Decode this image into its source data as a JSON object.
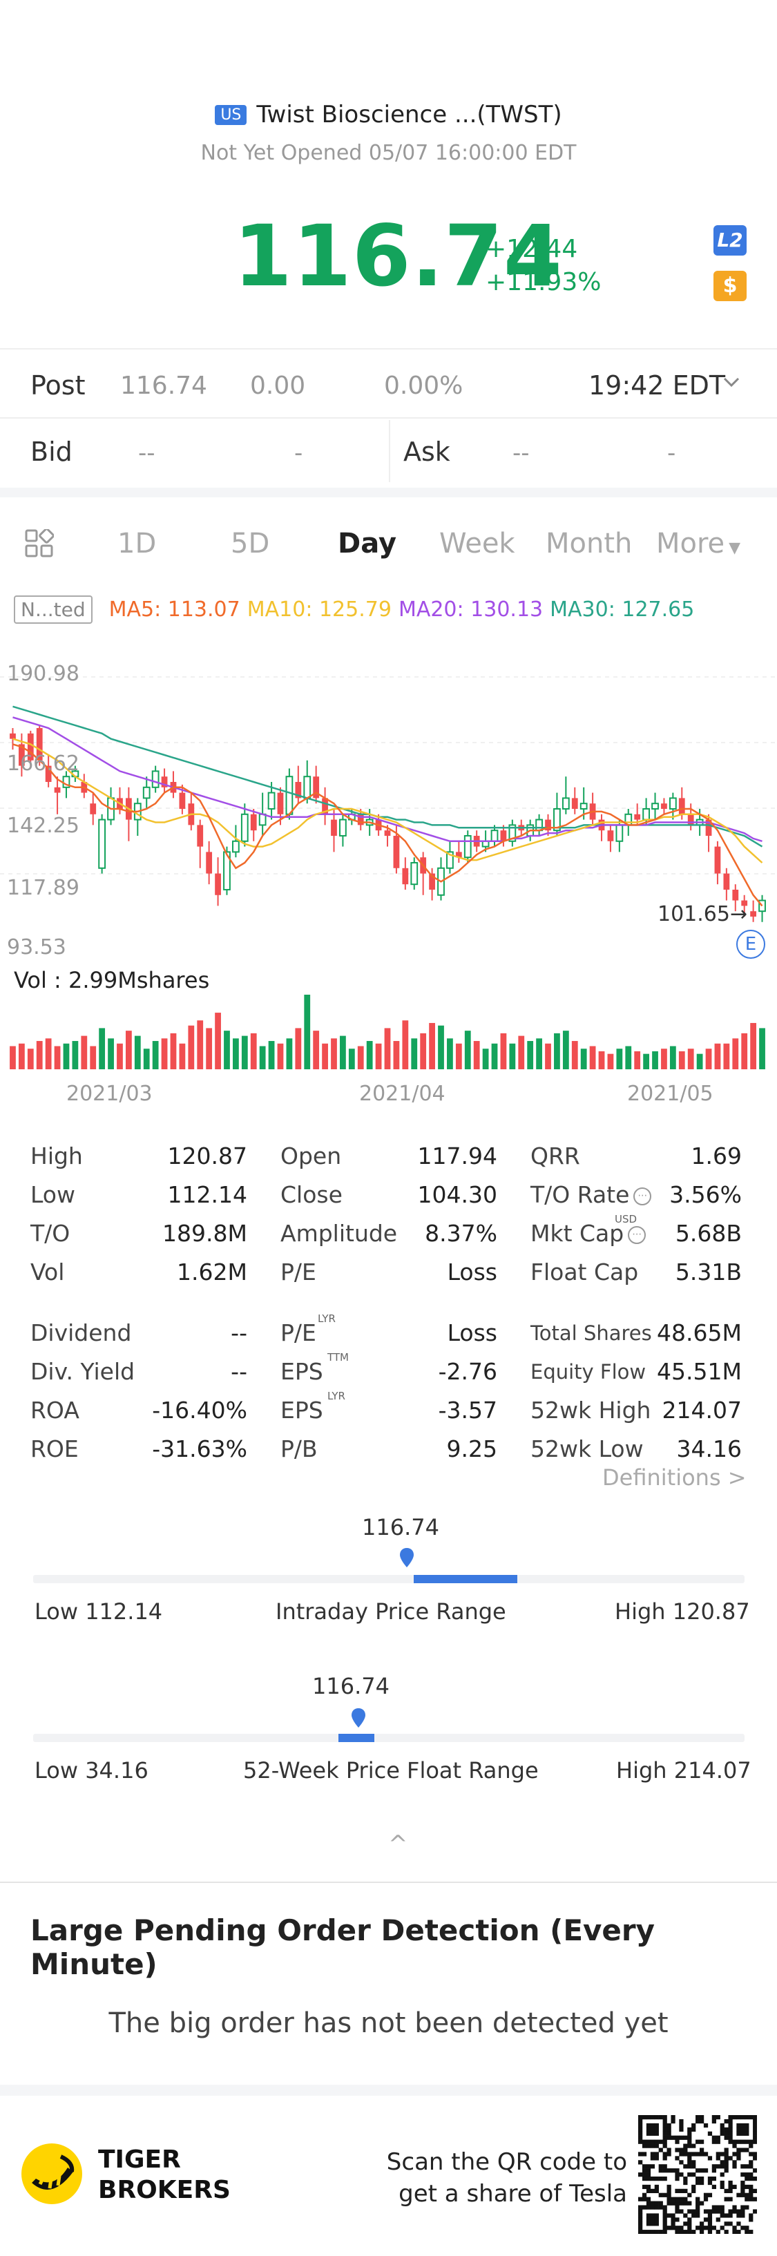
{
  "header": {
    "market_badge": "US",
    "title": "Twist Bioscience ...(TWST)",
    "status": "Not Yet Opened 05/07 16:00:00 EDT",
    "price": "116.74",
    "change": "+12.44",
    "change_pct": "+11.93%",
    "l2_badge": "L2",
    "dollar_badge": "$",
    "colors": {
      "up": "#14a35c",
      "down": "#f04e50",
      "accent": "#3b79e0"
    }
  },
  "post": {
    "label": "Post",
    "price": "116.74",
    "change": "0.00",
    "change_pct": "0.00%",
    "time": "19:42 EDT",
    "dropdown_icon": "chevron-down-icon"
  },
  "quote": {
    "bid_label": "Bid",
    "bid_price": "--",
    "bid_size": "-",
    "ask_label": "Ask",
    "ask_price": "--",
    "ask_size": "-"
  },
  "tabs": [
    "1D",
    "5D",
    "Day",
    "Week",
    "Month",
    "More"
  ],
  "active_tab": "Day",
  "indicators": {
    "mode": "N...ted",
    "ma5": "MA5: 113.07",
    "ma10": "MA10: 125.79",
    "ma20": "MA20: 130.13",
    "ma30": "MA30: 127.65",
    "colors": {
      "ma5": "#f06a2a",
      "ma10": "#f2c12e",
      "ma20": "#a24ee6",
      "ma30": "#2aa58a"
    }
  },
  "chart_data": {
    "type": "candlestick",
    "y_ticks": [
      "190.98",
      "166.62",
      "142.25",
      "117.89",
      "93.53"
    ],
    "ylim": [
      93.53,
      190.98
    ],
    "x_ticks": [
      "2021/03",
      "2021/04",
      "2021/05"
    ],
    "last_price_label": "101.65",
    "earnings_marker": "E",
    "volume_label": "Vol  : 2.99Mshares",
    "candles": [
      {
        "o": 170,
        "c": 168,
        "h": 172,
        "l": 164
      },
      {
        "o": 166,
        "c": 158,
        "h": 170,
        "l": 154
      },
      {
        "o": 170,
        "c": 160,
        "h": 171,
        "l": 158
      },
      {
        "o": 172,
        "c": 160,
        "h": 173,
        "l": 158
      },
      {
        "o": 158,
        "c": 152,
        "h": 162,
        "l": 150
      },
      {
        "o": 150,
        "c": 148,
        "h": 154,
        "l": 140
      },
      {
        "o": 150,
        "c": 154,
        "h": 156,
        "l": 146
      },
      {
        "o": 154,
        "c": 156,
        "h": 158,
        "l": 152
      },
      {
        "o": 152,
        "c": 148,
        "h": 155,
        "l": 146
      },
      {
        "o": 144,
        "c": 140,
        "h": 148,
        "l": 136
      },
      {
        "o": 120,
        "c": 138,
        "h": 140,
        "l": 118
      },
      {
        "o": 138,
        "c": 146,
        "h": 150,
        "l": 136
      },
      {
        "o": 146,
        "c": 142,
        "h": 150,
        "l": 140
      },
      {
        "o": 146,
        "c": 138,
        "h": 150,
        "l": 130
      },
      {
        "o": 138,
        "c": 144,
        "h": 146,
        "l": 132
      },
      {
        "o": 146,
        "c": 150,
        "h": 154,
        "l": 142
      },
      {
        "o": 150,
        "c": 156,
        "h": 158,
        "l": 148
      },
      {
        "o": 154,
        "c": 150,
        "h": 157,
        "l": 148
      },
      {
        "o": 152,
        "c": 148,
        "h": 156,
        "l": 146
      },
      {
        "o": 148,
        "c": 142,
        "h": 151,
        "l": 140
      },
      {
        "o": 144,
        "c": 136,
        "h": 148,
        "l": 134
      },
      {
        "o": 136,
        "c": 128,
        "h": 138,
        "l": 120
      },
      {
        "o": 126,
        "c": 118,
        "h": 130,
        "l": 114
      },
      {
        "o": 118,
        "c": 110,
        "h": 124,
        "l": 106
      },
      {
        "o": 112,
        "c": 126,
        "h": 128,
        "l": 110
      },
      {
        "o": 126,
        "c": 130,
        "h": 136,
        "l": 124
      },
      {
        "o": 130,
        "c": 140,
        "h": 144,
        "l": 128
      },
      {
        "o": 140,
        "c": 134,
        "h": 142,
        "l": 130
      },
      {
        "o": 136,
        "c": 140,
        "h": 148,
        "l": 132
      },
      {
        "o": 142,
        "c": 148,
        "h": 152,
        "l": 138
      },
      {
        "o": 148,
        "c": 140,
        "h": 150,
        "l": 136
      },
      {
        "o": 140,
        "c": 154,
        "h": 157,
        "l": 138
      },
      {
        "o": 152,
        "c": 146,
        "h": 158,
        "l": 144
      },
      {
        "o": 146,
        "c": 154,
        "h": 160,
        "l": 144
      },
      {
        "o": 154,
        "c": 146,
        "h": 158,
        "l": 144
      },
      {
        "o": 146,
        "c": 140,
        "h": 150,
        "l": 136
      },
      {
        "o": 138,
        "c": 132,
        "h": 142,
        "l": 126
      },
      {
        "o": 132,
        "c": 138,
        "h": 140,
        "l": 128
      },
      {
        "o": 138,
        "c": 140,
        "h": 142,
        "l": 136
      },
      {
        "o": 140,
        "c": 136,
        "h": 142,
        "l": 134
      },
      {
        "o": 136,
        "c": 138,
        "h": 142,
        "l": 132
      },
      {
        "o": 138,
        "c": 134,
        "h": 140,
        "l": 132
      },
      {
        "o": 134,
        "c": 132,
        "h": 136,
        "l": 128
      },
      {
        "o": 132,
        "c": 120,
        "h": 136,
        "l": 118
      },
      {
        "o": 120,
        "c": 114,
        "h": 124,
        "l": 112
      },
      {
        "o": 114,
        "c": 122,
        "h": 124,
        "l": 112
      },
      {
        "o": 124,
        "c": 118,
        "h": 126,
        "l": 110
      },
      {
        "o": 118,
        "c": 112,
        "h": 120,
        "l": 108
      },
      {
        "o": 110,
        "c": 120,
        "h": 124,
        "l": 108
      },
      {
        "o": 120,
        "c": 126,
        "h": 130,
        "l": 118
      },
      {
        "o": 126,
        "c": 124,
        "h": 130,
        "l": 122
      },
      {
        "o": 124,
        "c": 132,
        "h": 134,
        "l": 122
      },
      {
        "o": 132,
        "c": 128,
        "h": 134,
        "l": 126
      },
      {
        "o": 128,
        "c": 130,
        "h": 134,
        "l": 126
      },
      {
        "o": 130,
        "c": 134,
        "h": 136,
        "l": 128
      },
      {
        "o": 134,
        "c": 130,
        "h": 136,
        "l": 128
      },
      {
        "o": 130,
        "c": 136,
        "h": 138,
        "l": 128
      },
      {
        "o": 136,
        "c": 134,
        "h": 138,
        "l": 132
      },
      {
        "o": 132,
        "c": 136,
        "h": 138,
        "l": 130
      },
      {
        "o": 134,
        "c": 138,
        "h": 140,
        "l": 132
      },
      {
        "o": 138,
        "c": 134,
        "h": 140,
        "l": 132
      },
      {
        "o": 134,
        "c": 142,
        "h": 148,
        "l": 132
      },
      {
        "o": 142,
        "c": 146,
        "h": 154,
        "l": 140
      },
      {
        "o": 146,
        "c": 142,
        "h": 150,
        "l": 140
      },
      {
        "o": 142,
        "c": 144,
        "h": 150,
        "l": 138
      },
      {
        "o": 144,
        "c": 138,
        "h": 148,
        "l": 136
      },
      {
        "o": 138,
        "c": 134,
        "h": 140,
        "l": 130
      },
      {
        "o": 134,
        "c": 130,
        "h": 136,
        "l": 126
      },
      {
        "o": 130,
        "c": 136,
        "h": 138,
        "l": 126
      },
      {
        "o": 136,
        "c": 140,
        "h": 142,
        "l": 132
      },
      {
        "o": 140,
        "c": 138,
        "h": 144,
        "l": 136
      },
      {
        "o": 138,
        "c": 142,
        "h": 146,
        "l": 136
      },
      {
        "o": 142,
        "c": 144,
        "h": 148,
        "l": 138
      },
      {
        "o": 144,
        "c": 142,
        "h": 146,
        "l": 140
      },
      {
        "o": 142,
        "c": 146,
        "h": 148,
        "l": 138
      },
      {
        "o": 146,
        "c": 140,
        "h": 150,
        "l": 138
      },
      {
        "o": 140,
        "c": 136,
        "h": 144,
        "l": 134
      },
      {
        "o": 136,
        "c": 138,
        "h": 142,
        "l": 132
      },
      {
        "o": 138,
        "c": 132,
        "h": 140,
        "l": 126
      },
      {
        "o": 128,
        "c": 118,
        "h": 130,
        "l": 114
      },
      {
        "o": 118,
        "c": 112,
        "h": 120,
        "l": 108
      },
      {
        "o": 112,
        "c": 108,
        "h": 114,
        "l": 104
      },
      {
        "o": 108,
        "c": 106,
        "h": 110,
        "l": 102
      },
      {
        "o": 104,
        "c": 102,
        "h": 108,
        "l": 100
      },
      {
        "o": 104,
        "c": 108,
        "h": 110,
        "l": 100
      }
    ],
    "ma5": [
      166,
      165,
      163,
      160,
      157,
      153,
      151,
      150,
      150,
      148,
      144,
      142,
      142,
      141,
      141,
      142,
      144,
      148,
      150,
      150,
      148,
      145,
      139,
      132,
      125,
      120,
      122,
      126,
      132,
      136,
      138,
      140,
      144,
      146,
      148,
      146,
      144,
      140,
      138,
      137,
      137,
      136,
      135,
      133,
      130,
      125,
      121,
      117,
      115,
      117,
      119,
      122,
      125,
      127,
      128,
      130,
      131,
      132,
      134,
      134,
      135,
      135,
      136,
      138,
      140,
      141,
      141,
      140,
      138,
      136,
      136,
      137,
      138,
      140,
      141,
      142,
      142,
      140,
      138,
      134,
      128,
      122,
      116,
      110,
      106
    ],
    "ma10": [
      168,
      167,
      166,
      164,
      162,
      160,
      157,
      154,
      152,
      150,
      148,
      146,
      144,
      142,
      140,
      138,
      137,
      137,
      138,
      139,
      140,
      140,
      139,
      137,
      134,
      131,
      129,
      128,
      128,
      129,
      131,
      133,
      135,
      138,
      140,
      141,
      142,
      142,
      142,
      141,
      140,
      139,
      138,
      137,
      135,
      133,
      131,
      129,
      127,
      125,
      124,
      123,
      123,
      124,
      125,
      126,
      127,
      128,
      129,
      130,
      131,
      132,
      133,
      134,
      135,
      136,
      137,
      137,
      137,
      137,
      137,
      138,
      138,
      139,
      139,
      140,
      140,
      140,
      139,
      137,
      135,
      132,
      128,
      125,
      122
    ],
    "ma20": [
      176,
      175,
      174,
      173,
      172,
      170,
      168,
      166,
      164,
      162,
      160,
      158,
      156,
      155,
      154,
      153,
      152,
      151,
      150,
      149,
      148,
      147,
      146,
      145,
      144,
      143,
      142,
      141,
      140,
      139,
      139,
      139,
      139,
      139,
      140,
      140,
      140,
      140,
      140,
      139,
      139,
      138,
      137,
      136,
      135,
      134,
      133,
      132,
      131,
      130,
      130,
      130,
      130,
      130,
      130,
      130,
      131,
      131,
      132,
      132,
      133,
      133,
      134,
      134,
      135,
      135,
      136,
      136,
      136,
      136,
      136,
      136,
      137,
      137,
      137,
      137,
      137,
      137,
      137,
      136,
      135,
      134,
      133,
      131,
      130
    ],
    "ma30": [
      180,
      179,
      178,
      177,
      176,
      175,
      174,
      173,
      172,
      171,
      170,
      168,
      167,
      166,
      165,
      164,
      163,
      162,
      161,
      160,
      159,
      158,
      157,
      156,
      155,
      154,
      153,
      152,
      151,
      150,
      149,
      148,
      147,
      146,
      145,
      144,
      143,
      142,
      141,
      140,
      140,
      139,
      139,
      138,
      138,
      137,
      137,
      136,
      136,
      136,
      135,
      135,
      135,
      135,
      135,
      135,
      135,
      135,
      135,
      135,
      135,
      135,
      135,
      135,
      136,
      136,
      136,
      136,
      136,
      136,
      136,
      136,
      136,
      136,
      136,
      136,
      136,
      136,
      136,
      135,
      134,
      133,
      132,
      130,
      128
    ],
    "volumes": [
      0.9,
      1.0,
      0.8,
      1.1,
      1.2,
      0.9,
      1.0,
      1.1,
      1.3,
      0.9,
      1.6,
      1.2,
      1.0,
      1.5,
      1.3,
      0.8,
      1.1,
      1.2,
      1.4,
      1.0,
      1.7,
      1.9,
      1.6,
      2.2,
      1.5,
      1.2,
      1.3,
      1.4,
      0.9,
      1.1,
      1.0,
      1.2,
      1.6,
      2.9,
      1.5,
      1.0,
      1.2,
      1.3,
      0.8,
      0.9,
      1.1,
      1.0,
      1.6,
      1.1,
      1.9,
      1.2,
      1.4,
      1.8,
      1.7,
      1.2,
      1.0,
      1.5,
      1.1,
      0.8,
      1.0,
      1.4,
      1.0,
      1.3,
      1.1,
      1.2,
      1.0,
      1.4,
      1.5,
      1.1,
      0.8,
      0.9,
      0.7,
      0.6,
      0.8,
      0.9,
      0.7,
      0.6,
      0.7,
      0.8,
      0.9,
      0.7,
      0.8,
      0.6,
      0.8,
      1.0,
      1.0,
      1.2,
      1.4,
      1.8,
      1.6
    ]
  },
  "stats": {
    "col1": [
      {
        "label": "High",
        "value": "120.87"
      },
      {
        "label": "Low",
        "value": "112.14"
      },
      {
        "label": "T/O",
        "value": "189.8M"
      },
      {
        "label": "Vol",
        "value": "1.62M"
      },
      {
        "label": "Dividend",
        "value": "--"
      },
      {
        "label": "Div. Yield",
        "value": "--"
      },
      {
        "label": "ROA",
        "value": "-16.40%"
      },
      {
        "label": "ROE",
        "value": "-31.63%"
      }
    ],
    "col2": [
      {
        "label": "Open",
        "value": "117.94"
      },
      {
        "label": "Close",
        "value": "104.30"
      },
      {
        "label": "Amplitude",
        "value": "8.37%"
      },
      {
        "label": "P/E",
        "value": "Loss"
      },
      {
        "label": "P/E",
        "sup": "LYR",
        "value": "Loss"
      },
      {
        "label": "EPS",
        "sup": "TTM",
        "value": "-2.76"
      },
      {
        "label": "EPS",
        "sup": "LYR",
        "value": "-3.57"
      },
      {
        "label": "P/B",
        "value": "9.25"
      }
    ],
    "col3": [
      {
        "label": "QRR",
        "value": "1.69"
      },
      {
        "label": "T/O Rate",
        "info": true,
        "value": "3.56%"
      },
      {
        "label": "Mkt Cap",
        "sup": "USD",
        "info": true,
        "value": "5.68B"
      },
      {
        "label": "Float Cap",
        "value": "5.31B"
      },
      {
        "label": "Total Shares",
        "small": true,
        "value": "48.65M"
      },
      {
        "label": "Equity Flow",
        "small": true,
        "value": "45.51M"
      },
      {
        "label": "52wk High",
        "value": "214.07"
      },
      {
        "label": "52wk Low",
        "value": "34.16"
      }
    ],
    "definitions": "Definitions"
  },
  "ranges": {
    "intraday": {
      "value": "116.74",
      "low": "Low 112.14",
      "title": "Intraday Price Range",
      "high": "High 120.87",
      "position": 0.535,
      "fill_start": 0.535,
      "fill_end": 0.68
    },
    "week52": {
      "value": "116.74",
      "low": "Low 34.16",
      "title": "52-Week Price Float Range",
      "high": "High 214.07",
      "position": 0.458,
      "fill_start": 0.44,
      "fill_end": 0.475
    }
  },
  "collapse_icon": "^",
  "pending_orders": {
    "title": "Large Pending Order Detection (Every Minute)",
    "empty": "The big order has not been detected yet"
  },
  "footer": {
    "brand_line1": "TIGER",
    "brand_line2": "BROKERS",
    "scan_line1": "Scan the QR code to",
    "scan_line2": "get a share of Tesla"
  }
}
